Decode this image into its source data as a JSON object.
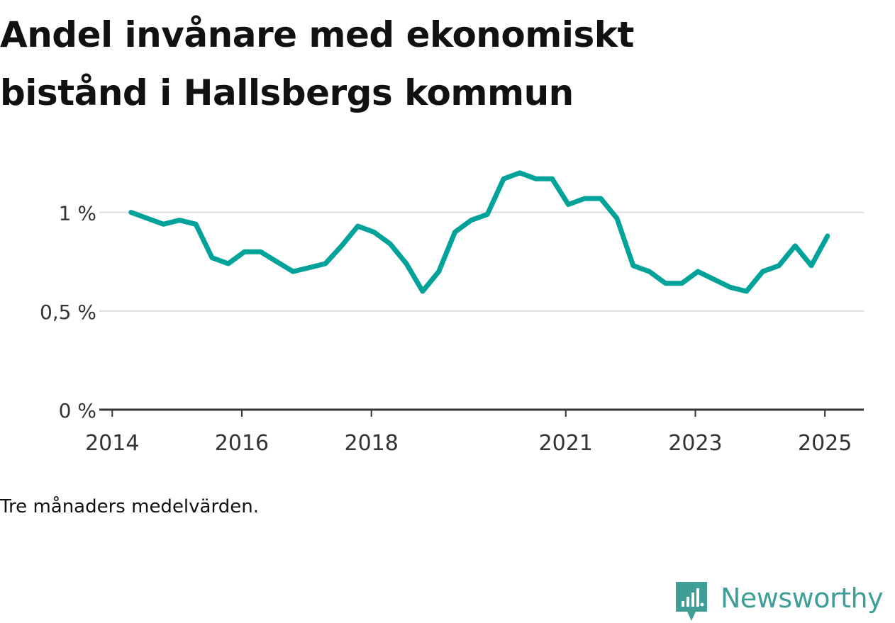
{
  "title": "Andel invånare med ekonomiskt bistånd i Hallsbergs kommun",
  "note": "Tre månaders medelvärden.",
  "brand": {
    "name": "Newsworthy",
    "icon": "newsworthy-logo-icon",
    "color": "#3f9e97"
  },
  "chart_data": {
    "type": "line",
    "title": "Andel invånare med ekonomiskt bistånd i Hallsbergs kommun",
    "xlabel": "",
    "ylabel": "",
    "y_tick_labels": [
      "0 %",
      "0,5 %",
      "1 %"
    ],
    "y_ticks": [
      0,
      0.5,
      1
    ],
    "ylim": [
      0,
      1.25
    ],
    "x_tick_labels": [
      "2014",
      "2016",
      "2018",
      "2021",
      "2023",
      "2025"
    ],
    "x_ticks": [
      2014.0,
      2016.0,
      2018.0,
      2021.0,
      2023.0,
      2025.0
    ],
    "xlim": [
      2013.8,
      2025.6
    ],
    "grid": true,
    "legend": "none",
    "line_color": "#00a29a",
    "series": [
      {
        "values_x": [
          2014.29,
          2014.54,
          2014.79,
          2015.04,
          2015.29,
          2015.54,
          2015.79,
          2016.04,
          2016.29,
          2016.54,
          2016.79,
          2017.04,
          2017.29,
          2017.54,
          2017.79,
          2018.04,
          2018.29,
          2018.54,
          2018.79,
          2019.04,
          2019.29,
          2019.54,
          2019.79,
          2020.04,
          2020.29,
          2020.54,
          2020.79,
          2021.04,
          2021.29,
          2021.54,
          2021.79,
          2022.04,
          2022.29,
          2022.54,
          2022.79,
          2023.04,
          2023.29,
          2023.54,
          2023.79,
          2024.04,
          2024.29,
          2024.54,
          2024.79,
          2025.04
        ],
        "values": [
          1.0,
          0.97,
          0.94,
          0.96,
          0.94,
          0.77,
          0.74,
          0.8,
          0.8,
          0.75,
          0.7,
          0.72,
          0.74,
          0.83,
          0.93,
          0.9,
          0.84,
          0.74,
          0.6,
          0.7,
          0.9,
          0.96,
          0.99,
          1.17,
          1.2,
          1.17,
          1.17,
          1.04,
          1.07,
          1.07,
          0.97,
          0.73,
          0.7,
          0.64,
          0.64,
          0.7,
          0.66,
          0.62,
          0.6,
          0.7,
          0.73,
          0.83,
          0.73,
          0.88
        ]
      }
    ]
  }
}
